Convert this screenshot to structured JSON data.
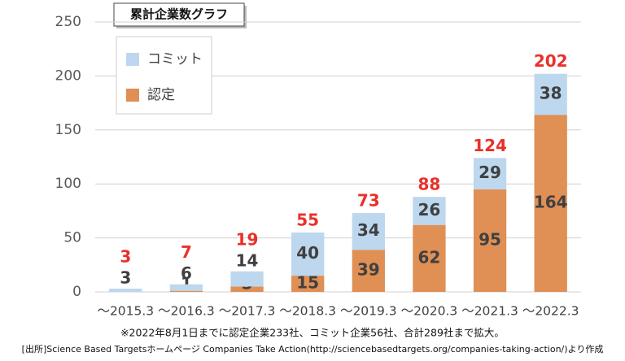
{
  "chart_data": {
    "type": "stacked_bar",
    "title": "累計企業数グラフ",
    "categories": [
      "～2015.3",
      "～2016.3",
      "～2017.3",
      "～2018.3",
      "～2019.3",
      "～2020.3",
      "～2021.3",
      "～2022.3"
    ],
    "series": [
      {
        "name": "認定",
        "color": "#e08f55",
        "values": [
          0,
          1,
          5,
          15,
          39,
          62,
          95,
          164
        ]
      },
      {
        "name": "コミット",
        "color": "#bdd7ee",
        "values": [
          3,
          6,
          14,
          40,
          34,
          26,
          29,
          38
        ]
      }
    ],
    "totals": [
      3,
      7,
      19,
      55,
      73,
      88,
      124,
      202
    ],
    "totals_color": "#e8312a",
    "ylim": [
      0,
      250
    ],
    "yticks": [
      0,
      50,
      100,
      150,
      200,
      250
    ],
    "grid": true,
    "legend": "upper left",
    "notes": [
      "※2022年8月1日までに認定企業233社、コミット企業56社、合計289社まで拡大。",
      "[出所]Science Based Targetsホームページ  Companies Take Action(http://sciencebasedtargets.org/companies-taking-action/)より作成"
    ]
  }
}
